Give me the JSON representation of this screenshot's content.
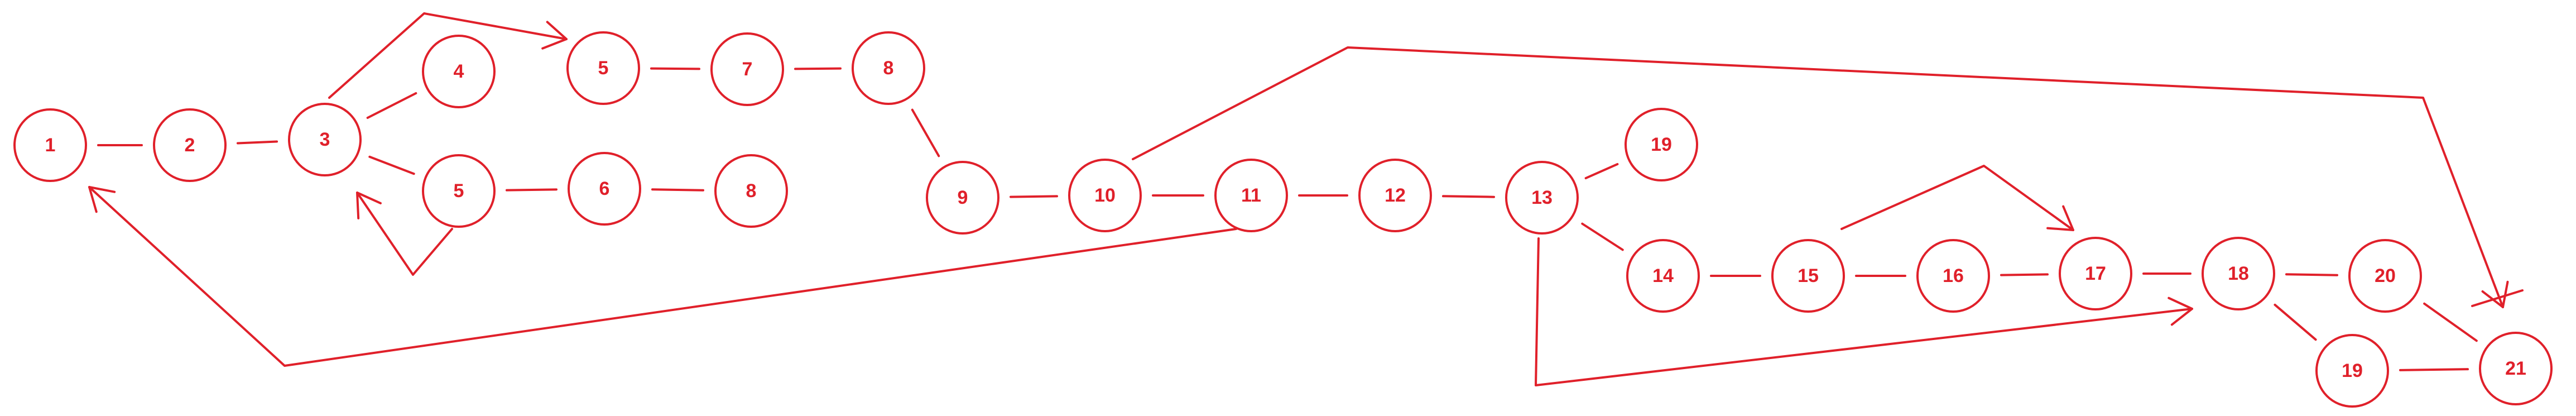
{
  "diagram": {
    "stroke_color": "#e0202a",
    "background": "#ffffff",
    "nodes": [
      {
        "id": "n1",
        "label": "1"
      },
      {
        "id": "n2",
        "label": "2"
      },
      {
        "id": "n3",
        "label": "3"
      },
      {
        "id": "n4",
        "label": "4"
      },
      {
        "id": "n5a",
        "label": "5"
      },
      {
        "id": "n6",
        "label": "6"
      },
      {
        "id": "n8b",
        "label": "8"
      },
      {
        "id": "n5b",
        "label": "5"
      },
      {
        "id": "n7",
        "label": "7"
      },
      {
        "id": "n8a",
        "label": "8"
      },
      {
        "id": "n9",
        "label": "9"
      },
      {
        "id": "n10",
        "label": "10"
      },
      {
        "id": "n11",
        "label": "11"
      },
      {
        "id": "n12",
        "label": "12"
      },
      {
        "id": "n13",
        "label": "13"
      },
      {
        "id": "n19a",
        "label": "19"
      },
      {
        "id": "n14",
        "label": "14"
      },
      {
        "id": "n15",
        "label": "15"
      },
      {
        "id": "n16",
        "label": "16"
      },
      {
        "id": "n17",
        "label": "17"
      },
      {
        "id": "n18",
        "label": "18"
      },
      {
        "id": "n20",
        "label": "20"
      },
      {
        "id": "n19b",
        "label": "19"
      },
      {
        "id": "n21",
        "label": "21"
      }
    ],
    "edges": [
      {
        "from": "n1",
        "to": "n2",
        "arrow": false
      },
      {
        "from": "n2",
        "to": "n3",
        "arrow": false
      },
      {
        "from": "n3",
        "to": "n4",
        "arrow": false
      },
      {
        "from": "n3",
        "to": "n5a",
        "arrow": false
      },
      {
        "from": "n5a",
        "to": "n6",
        "arrow": false
      },
      {
        "from": "n6",
        "to": "n8b",
        "arrow": false
      },
      {
        "from": "n5a",
        "to": "n3",
        "arrow": true,
        "route": "via-below"
      },
      {
        "from": "n3",
        "to": "n5b",
        "arrow": true,
        "route": "over-top"
      },
      {
        "from": "n5b",
        "to": "n7",
        "arrow": false
      },
      {
        "from": "n7",
        "to": "n8a",
        "arrow": false
      },
      {
        "from": "n8a",
        "to": "n9",
        "arrow": false
      },
      {
        "from": "n9",
        "to": "n10",
        "arrow": false
      },
      {
        "from": "n10",
        "to": "n11",
        "arrow": false
      },
      {
        "from": "n11",
        "to": "n12",
        "arrow": false
      },
      {
        "from": "n12",
        "to": "n13",
        "arrow": false
      },
      {
        "from": "n13",
        "to": "n19a",
        "arrow": false
      },
      {
        "from": "n13",
        "to": "n14",
        "arrow": false
      },
      {
        "from": "n14",
        "to": "n15",
        "arrow": false
      },
      {
        "from": "n15",
        "to": "n16",
        "arrow": false
      },
      {
        "from": "n16",
        "to": "n17",
        "arrow": false
      },
      {
        "from": "n17",
        "to": "n18",
        "arrow": false
      },
      {
        "from": "n18",
        "to": "n20",
        "arrow": false
      },
      {
        "from": "n18",
        "to": "n19b",
        "arrow": false
      },
      {
        "from": "n19b",
        "to": "n21",
        "arrow": false
      },
      {
        "from": "n20",
        "to": "n21",
        "arrow": false
      },
      {
        "from": "n11",
        "to": "n1",
        "arrow": true,
        "route": "long-return-below"
      },
      {
        "from": "n10",
        "to": "n21",
        "arrow": true,
        "route": "long-over-top"
      },
      {
        "from": "n15",
        "to": "n17",
        "arrow": true,
        "route": "arc-over"
      },
      {
        "from": "n13",
        "to": "n17",
        "arrow": true,
        "route": "loop-below"
      },
      {
        "from": "n20",
        "to": "n21",
        "arrow": true,
        "route": "short-arrow"
      }
    ]
  }
}
